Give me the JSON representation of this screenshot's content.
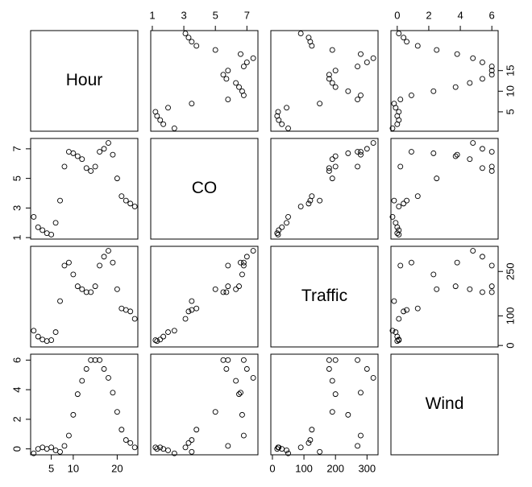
{
  "chart_data": {
    "type": "scatter-matrix",
    "variables": [
      {
        "name": "Hour",
        "values": [
          1,
          2,
          3,
          4,
          5,
          6,
          7,
          8,
          9,
          10,
          11,
          12,
          13,
          14,
          15,
          16,
          17,
          18,
          19,
          20,
          21,
          22,
          23,
          24
        ],
        "lim": [
          0.3,
          24.7
        ],
        "xticks": [
          5,
          10,
          20
        ],
        "yticks": [
          5,
          10,
          15
        ]
      },
      {
        "name": "CO",
        "values": [
          2.4,
          1.7,
          1.5,
          1.3,
          1.2,
          2.0,
          3.5,
          5.8,
          6.8,
          6.7,
          6.5,
          6.3,
          5.7,
          5.5,
          5.8,
          6.8,
          7.0,
          7.4,
          6.6,
          5.0,
          3.8,
          3.5,
          3.3,
          3.1
        ],
        "lim": [
          0.9,
          7.7
        ],
        "xticks": [
          1,
          3,
          5,
          7
        ],
        "yticks": [
          1,
          3,
          5,
          7
        ]
      },
      {
        "name": "Traffic",
        "values": [
          50,
          30,
          20,
          15,
          18,
          45,
          150,
          270,
          280,
          240,
          200,
          190,
          180,
          180,
          200,
          270,
          300,
          320,
          280,
          190,
          125,
          120,
          115,
          90
        ],
        "lim": [
          -5,
          335
        ],
        "xticks": [
          0,
          100,
          200,
          300
        ],
        "yticks": [
          0,
          100,
          250
        ]
      },
      {
        "name": "Wind",
        "values": [
          -0.3,
          0,
          0.1,
          0,
          0.1,
          -0.1,
          -0.2,
          0.2,
          0.9,
          2.3,
          3.7,
          4.6,
          5.4,
          6,
          6,
          6,
          5.4,
          4.8,
          3.8,
          2.5,
          1.3,
          0.6,
          0.4,
          0.1
        ],
        "lim": [
          -0.4,
          6.4
        ],
        "xticks": [
          0,
          2,
          4,
          6
        ],
        "yticks": [
          0,
          2,
          4,
          6
        ]
      }
    ]
  }
}
